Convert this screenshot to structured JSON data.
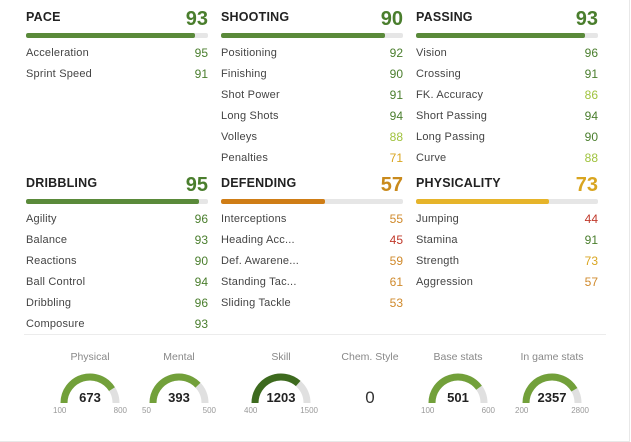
{
  "colors": {
    "green_high": "#4a7e2d",
    "green_mid": "#72a03a",
    "lime": "#9fc23c",
    "gold": "#d9a520",
    "orange": "#d08a2c",
    "red": "#c0392b",
    "bar_pace": "#5a8a3a",
    "bar_defending": "#cf7d16",
    "bar_physicality": "#e6b42a",
    "gauge_track": "#e0e0e0",
    "gauge_dark": "#3d6a1e"
  },
  "categories": [
    {
      "title": "PACE",
      "value": 93,
      "fill": 0.93,
      "stats": [
        {
          "name": "Acceleration",
          "value": 95
        },
        {
          "name": "Sprint Speed",
          "value": 91
        }
      ]
    },
    {
      "title": "SHOOTING",
      "value": 90,
      "fill": 0.9,
      "stats": [
        {
          "name": "Positioning",
          "value": 92
        },
        {
          "name": "Finishing",
          "value": 90
        },
        {
          "name": "Shot Power",
          "value": 91
        },
        {
          "name": "Long Shots",
          "value": 94
        },
        {
          "name": "Volleys",
          "value": 88
        },
        {
          "name": "Penalties",
          "value": 71
        }
      ]
    },
    {
      "title": "PASSING",
      "value": 93,
      "fill": 0.93,
      "stats": [
        {
          "name": "Vision",
          "value": 96
        },
        {
          "name": "Crossing",
          "value": 91
        },
        {
          "name": "FK. Accuracy",
          "value": 86
        },
        {
          "name": "Short Passing",
          "value": 94
        },
        {
          "name": "Long Passing",
          "value": 90
        },
        {
          "name": "Curve",
          "value": 88
        }
      ]
    },
    {
      "title": "DRIBBLING",
      "value": 95,
      "fill": 0.95,
      "stats": [
        {
          "name": "Agility",
          "value": 96
        },
        {
          "name": "Balance",
          "value": 93
        },
        {
          "name": "Reactions",
          "value": 90
        },
        {
          "name": "Ball Control",
          "value": 94
        },
        {
          "name": "Dribbling",
          "value": 96
        },
        {
          "name": "Composure",
          "value": 93
        }
      ]
    },
    {
      "title": "DEFENDING",
      "value": 57,
      "fill": 0.57,
      "stats": [
        {
          "name": "Interceptions",
          "value": 55
        },
        {
          "name": "Heading Acc...",
          "value": 45
        },
        {
          "name": "Def. Awarene...",
          "value": 59
        },
        {
          "name": "Standing Tac...",
          "value": 61
        },
        {
          "name": "Sliding Tackle",
          "value": 53
        }
      ]
    },
    {
      "title": "PHYSICALITY",
      "value": 73,
      "fill": 0.73,
      "stats": [
        {
          "name": "Jumping",
          "value": 44
        },
        {
          "name": "Stamina",
          "value": 91
        },
        {
          "name": "Strength",
          "value": 73
        },
        {
          "name": "Aggression",
          "value": 57
        }
      ]
    }
  ],
  "gauges": [
    {
      "label": "Physical",
      "value": "673",
      "min": "100",
      "max": "800",
      "fraction": 0.82
    },
    {
      "label": "Mental",
      "value": "393",
      "min": "50",
      "max": "500",
      "fraction": 0.76
    },
    {
      "label": "Skill",
      "value": "1203",
      "min": "400",
      "max": "1500",
      "fraction": 0.73,
      "dark": true
    },
    {
      "label": "Chem. Style",
      "value": "0",
      "plain": true
    },
    {
      "label": "Base stats",
      "value": "501",
      "min": "100",
      "max": "600",
      "fraction": 0.8
    },
    {
      "label": "In game stats",
      "value": "2357",
      "min": "200",
      "max": "2800",
      "fraction": 0.83
    }
  ]
}
